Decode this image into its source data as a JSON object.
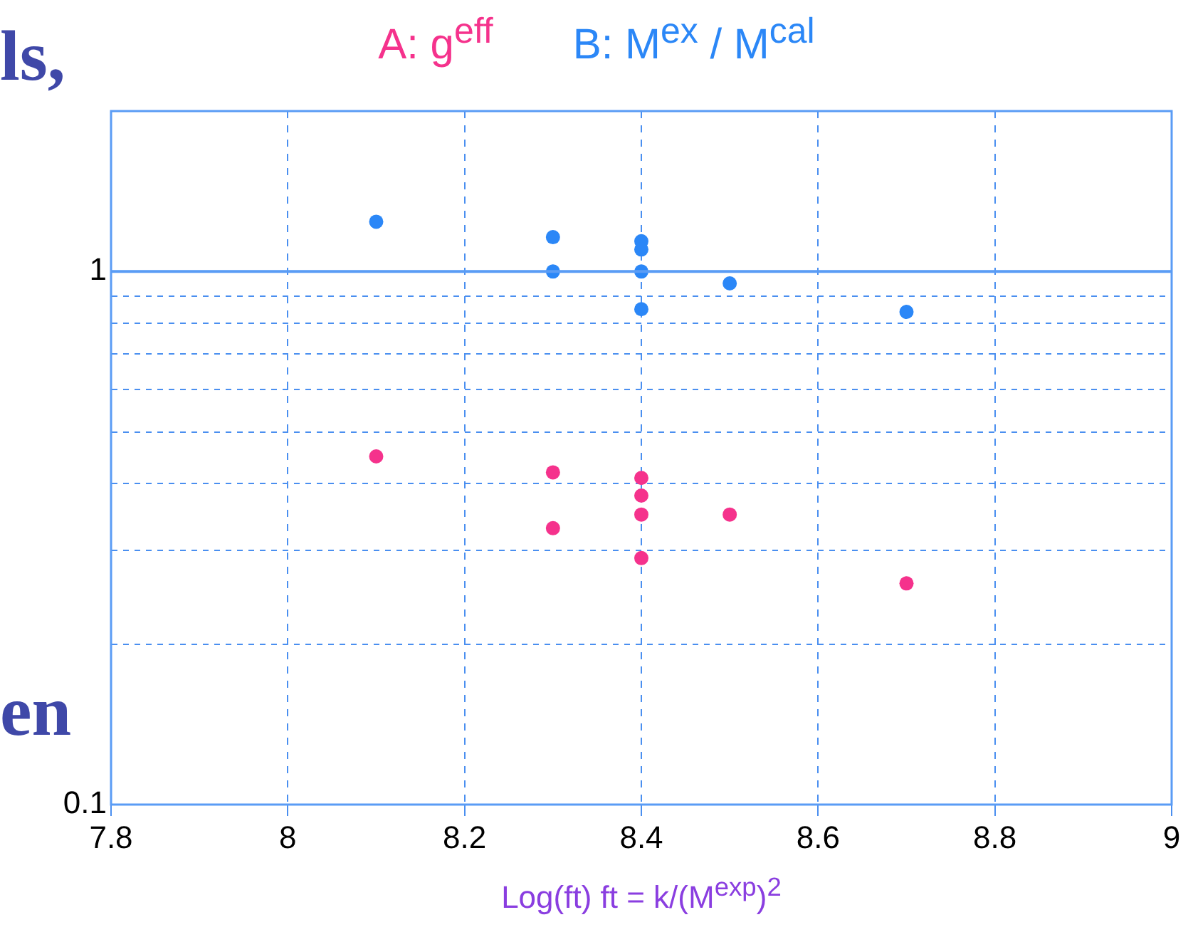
{
  "chart_data": {
    "type": "scatter",
    "xlabel": "Log(ft) ft = k/(M$^{exp}$)$^{2}$",
    "annotations": [
      "ls,",
      "en"
    ],
    "xlim": [
      7.8,
      9
    ],
    "xticks": [
      7.8,
      8,
      8.2,
      8.4,
      8.6,
      8.8,
      9
    ],
    "ylim": [
      0.1,
      2
    ],
    "yticks": [
      0.1,
      {
        "value": 0.2,
        "label": null
      },
      {
        "value": 0.3,
        "label": null
      },
      {
        "value": 0.4,
        "label": null
      },
      {
        "value": 0.5,
        "label": null
      },
      {
        "value": 0.6,
        "label": null
      },
      {
        "value": 0.7,
        "label": null
      },
      {
        "value": 0.8,
        "label": null
      },
      {
        "value": 0.9,
        "label": null
      },
      1
    ],
    "log": "y",
    "grid": true,
    "legend": "top",
    "marker": "circle",
    "ref_lines": [
      {
        "axis": "y",
        "value": 1,
        "color": "#5a9cf5",
        "line_style": "solid"
      }
    ],
    "series": [
      {
        "name": "A: g$^{eff}$",
        "color": "#f5328c",
        "x": [
          8.1,
          8.3,
          8.3,
          8.4,
          8.4,
          8.4,
          8.4,
          8.5,
          8.7
        ],
        "values": [
          0.45,
          0.42,
          0.33,
          0.41,
          0.38,
          0.35,
          0.29,
          0.35,
          0.26
        ]
      },
      {
        "name": "B: M$^{ex}$ / M$^{cal}$",
        "color": "#2b87f7",
        "x": [
          8.1,
          8.3,
          8.3,
          8.4,
          8.4,
          8.4,
          8.4,
          8.5,
          8.7
        ],
        "values": [
          1.24,
          1.16,
          1.0,
          1.14,
          1.1,
          1.0,
          0.85,
          0.95,
          0.84
        ]
      }
    ]
  }
}
